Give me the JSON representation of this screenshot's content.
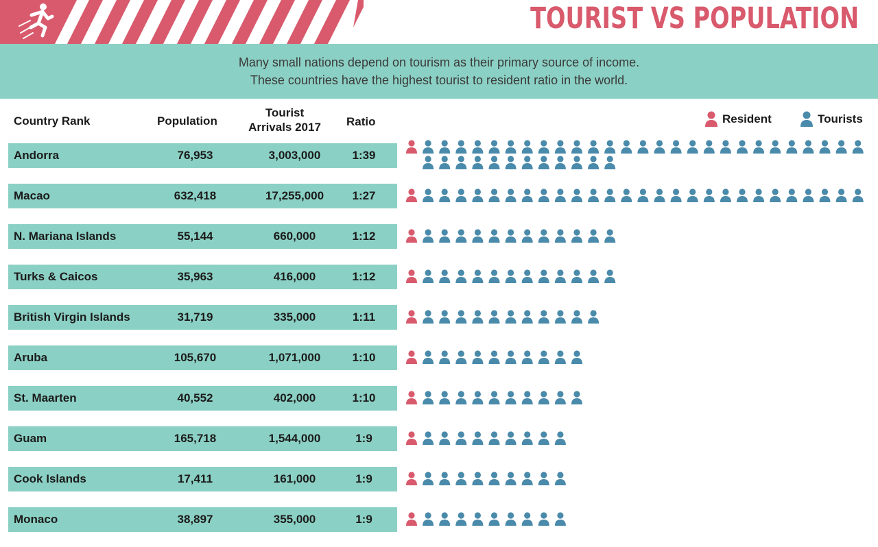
{
  "title": "TOURIST VS POPULATION",
  "subtitle_lines": [
    "Many small nations depend on tourism as their primary source of income.",
    "These countries have the highest tourist to resident ratio in the world."
  ],
  "headers": {
    "country": "Country Rank",
    "population": "Population",
    "tourist_line1": "Tourist",
    "tourist_line2": "Arrivals 2017",
    "ratio": "Ratio"
  },
  "legend": {
    "resident": "Resident",
    "tourists": "Tourists"
  },
  "colors": {
    "accent_red": "#d85a6c",
    "teal": "#8bd0c4",
    "resident_icon": "#d85a6c",
    "tourist_icon": "#4a8aaa"
  },
  "icons": {
    "logo": "running-person-icon",
    "resident": "person-icon",
    "tourist": "person-icon"
  },
  "chart_data": {
    "type": "table",
    "columns": [
      "Country Rank",
      "Population",
      "Tourist Arrivals 2017",
      "Ratio"
    ],
    "rows": [
      {
        "country": "Andorra",
        "population": "76,953",
        "tourists": "3,003,000",
        "ratio": "1:39",
        "resident_icons": 1,
        "tourist_icons": 39
      },
      {
        "country": "Macao",
        "population": "632,418",
        "tourists": "17,255,000",
        "ratio": "1:27",
        "resident_icons": 1,
        "tourist_icons": 27
      },
      {
        "country": "N. Mariana Islands",
        "population": "55,144",
        "tourists": "660,000",
        "ratio": "1:12",
        "resident_icons": 1,
        "tourist_icons": 12
      },
      {
        "country": "Turks & Caicos",
        "population": "35,963",
        "tourists": "416,000",
        "ratio": "1:12",
        "resident_icons": 1,
        "tourist_icons": 12
      },
      {
        "country": "British Virgin Islands",
        "population": "31,719",
        "tourists": "335,000",
        "ratio": "1:11",
        "resident_icons": 1,
        "tourist_icons": 11
      },
      {
        "country": "Aruba",
        "population": "105,670",
        "tourists": "1,071,000",
        "ratio": "1:10",
        "resident_icons": 1,
        "tourist_icons": 10
      },
      {
        "country": "St. Maarten",
        "population": "40,552",
        "tourists": "402,000",
        "ratio": "1:10",
        "resident_icons": 1,
        "tourist_icons": 10
      },
      {
        "country": "Guam",
        "population": "165,718",
        "tourists": "1,544,000",
        "ratio": "1:9",
        "resident_icons": 1,
        "tourist_icons": 9
      },
      {
        "country": "Cook Islands",
        "population": "17,411",
        "tourists": "161,000",
        "ratio": "1:9",
        "resident_icons": 1,
        "tourist_icons": 9
      },
      {
        "country": "Monaco",
        "population": "38,897",
        "tourists": "355,000",
        "ratio": "1:9",
        "resident_icons": 1,
        "tourist_icons": 9
      }
    ]
  }
}
